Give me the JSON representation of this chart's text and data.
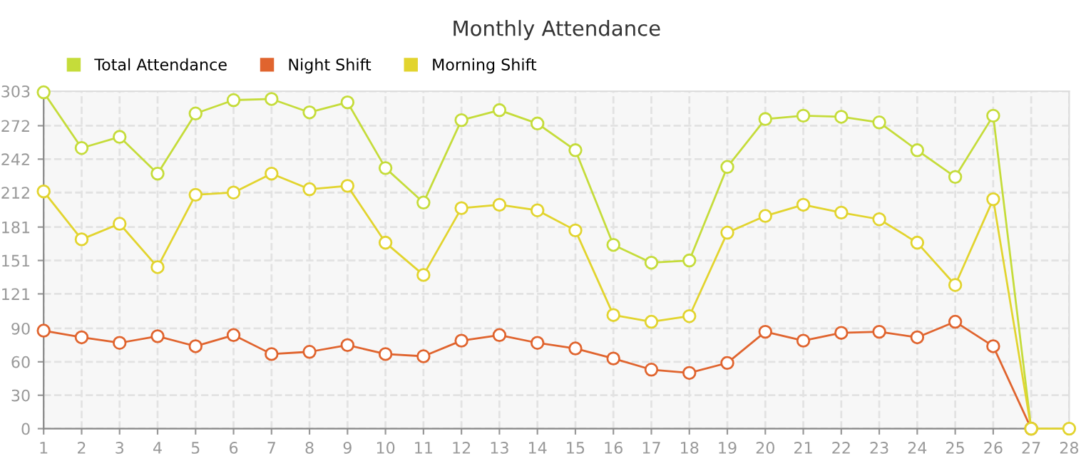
{
  "chart_data": {
    "type": "line",
    "title": "Monthly Attendance",
    "x": [
      1,
      2,
      3,
      4,
      5,
      6,
      7,
      8,
      9,
      10,
      11,
      12,
      13,
      14,
      15,
      16,
      17,
      18,
      19,
      20,
      21,
      22,
      23,
      24,
      25,
      26,
      27,
      28
    ],
    "series": [
      {
        "name": "Total Attendance",
        "color": "#c5dc3a",
        "values": [
          302,
          252,
          262,
          229,
          283,
          295,
          296,
          284,
          293,
          234,
          203,
          277,
          286,
          274,
          250,
          165,
          149,
          151,
          235,
          278,
          281,
          280,
          275,
          250,
          226,
          281,
          0,
          null
        ]
      },
      {
        "name": "Night Shift",
        "color": "#e0642e",
        "values": [
          88,
          82,
          77,
          83,
          74,
          84,
          67,
          69,
          75,
          67,
          65,
          79,
          84,
          77,
          72,
          63,
          53,
          50,
          59,
          87,
          79,
          86,
          87,
          82,
          96,
          74,
          0,
          null
        ]
      },
      {
        "name": "Morning Shift",
        "color": "#e2d42e",
        "values": [
          213,
          170,
          184,
          145,
          210,
          212,
          229,
          215,
          218,
          167,
          138,
          198,
          201,
          196,
          178,
          102,
          96,
          101,
          176,
          191,
          201,
          194,
          188,
          167,
          129,
          206,
          0,
          0
        ]
      }
    ],
    "xlim": [
      1,
      28
    ],
    "xticks": [
      1,
      2,
      3,
      4,
      5,
      6,
      7,
      8,
      9,
      10,
      11,
      12,
      13,
      14,
      15,
      16,
      17,
      18,
      19,
      20,
      21,
      22,
      23,
      24,
      25,
      26,
      27,
      28
    ],
    "ylim": [
      0,
      303
    ],
    "yticks": [
      0,
      30,
      60,
      90,
      121,
      151,
      181,
      212,
      242,
      272,
      303
    ],
    "grid": true,
    "legend": "top left",
    "marker": "circle",
    "line_style": "solid"
  }
}
